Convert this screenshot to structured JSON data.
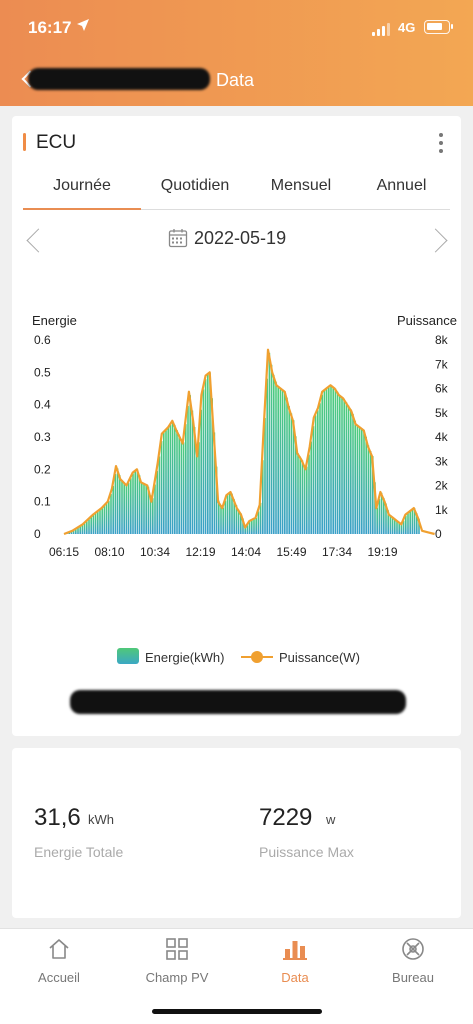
{
  "status_bar": {
    "time": "16:17",
    "network": "4G"
  },
  "nav": {
    "title": "Data"
  },
  "card": {
    "title": "ECU",
    "tabs": [
      "Journée",
      "Quotidien",
      "Mensuel",
      "Annuel"
    ],
    "active_tab": "Journée",
    "date": "2022-05-19"
  },
  "chart_data": {
    "type": "area",
    "x_labels": [
      "06:15",
      "08:10",
      "10:34",
      "12:19",
      "14:04",
      "15:49",
      "17:34",
      "19:19"
    ],
    "left_axis": {
      "label": "Energie",
      "ticks": [
        "0",
        "0.1",
        "0.2",
        "0.3",
        "0.4",
        "0.5",
        "0.6"
      ],
      "ylim": [
        0,
        0.6
      ]
    },
    "right_axis": {
      "label": "Puissance",
      "ticks": [
        "0",
        "1k",
        "2k",
        "3k",
        "4k",
        "5k",
        "6k",
        "7k",
        "8k"
      ],
      "ylim": [
        0,
        8000
      ]
    },
    "series": [
      {
        "name": "Energie(kWh)",
        "type": "bar"
      },
      {
        "name": "Puissance(W)",
        "type": "line"
      }
    ],
    "x_range": [
      "06:15",
      "20:30"
    ],
    "points": [
      [
        "06:15",
        0.0
      ],
      [
        "06:35",
        0.01
      ],
      [
        "07:00",
        0.03
      ],
      [
        "07:25",
        0.06
      ],
      [
        "07:45",
        0.08
      ],
      [
        "08:00",
        0.1
      ],
      [
        "08:10",
        0.14
      ],
      [
        "08:20",
        0.21
      ],
      [
        "08:30",
        0.17
      ],
      [
        "08:45",
        0.15
      ],
      [
        "09:00",
        0.19
      ],
      [
        "09:10",
        0.2
      ],
      [
        "09:20",
        0.16
      ],
      [
        "09:35",
        0.15
      ],
      [
        "09:45",
        0.1
      ],
      [
        "10:00",
        0.22
      ],
      [
        "10:10",
        0.31
      ],
      [
        "10:25",
        0.33
      ],
      [
        "10:35",
        0.35
      ],
      [
        "10:45",
        0.32
      ],
      [
        "11:00",
        0.28
      ],
      [
        "11:15",
        0.44
      ],
      [
        "11:25",
        0.35
      ],
      [
        "11:35",
        0.24
      ],
      [
        "11:45",
        0.43
      ],
      [
        "11:55",
        0.49
      ],
      [
        "12:05",
        0.5
      ],
      [
        "12:15",
        0.3
      ],
      [
        "12:25",
        0.1
      ],
      [
        "12:35",
        0.08
      ],
      [
        "12:45",
        0.12
      ],
      [
        "12:55",
        0.13
      ],
      [
        "13:10",
        0.08
      ],
      [
        "13:20",
        0.06
      ],
      [
        "13:30",
        0.02
      ],
      [
        "13:40",
        0.04
      ],
      [
        "13:55",
        0.05
      ],
      [
        "14:05",
        0.09
      ],
      [
        "14:15",
        0.34
      ],
      [
        "14:25",
        0.57
      ],
      [
        "14:35",
        0.5
      ],
      [
        "14:45",
        0.46
      ],
      [
        "14:55",
        0.45
      ],
      [
        "15:05",
        0.44
      ],
      [
        "15:15",
        0.39
      ],
      [
        "15:25",
        0.35
      ],
      [
        "15:35",
        0.25
      ],
      [
        "15:45",
        0.23
      ],
      [
        "15:55",
        0.2
      ],
      [
        "16:05",
        0.27
      ],
      [
        "16:15",
        0.36
      ],
      [
        "16:25",
        0.39
      ],
      [
        "16:35",
        0.44
      ],
      [
        "16:45",
        0.45
      ],
      [
        "16:55",
        0.46
      ],
      [
        "17:05",
        0.45
      ],
      [
        "17:15",
        0.43
      ],
      [
        "17:25",
        0.42
      ],
      [
        "17:35",
        0.4
      ],
      [
        "17:45",
        0.38
      ],
      [
        "17:55",
        0.34
      ],
      [
        "18:05",
        0.33
      ],
      [
        "18:15",
        0.32
      ],
      [
        "18:25",
        0.27
      ],
      [
        "18:35",
        0.24
      ],
      [
        "18:45",
        0.08
      ],
      [
        "18:55",
        0.13
      ],
      [
        "19:05",
        0.1
      ],
      [
        "19:15",
        0.06
      ],
      [
        "19:25",
        0.05
      ],
      [
        "19:35",
        0.04
      ],
      [
        "19:45",
        0.03
      ],
      [
        "19:55",
        0.06
      ],
      [
        "20:05",
        0.07
      ],
      [
        "20:15",
        0.08
      ],
      [
        "20:25",
        0.05
      ],
      [
        "20:35",
        0.01
      ],
      [
        "20:50",
        0.005
      ],
      [
        "21:05",
        0.0
      ]
    ]
  },
  "legend": {
    "energie": "Energie(kWh)",
    "puissance": "Puissance(W)"
  },
  "stats": {
    "energie_value": "31,6",
    "energie_unit": "kWh",
    "energie_label": "Energie Totale",
    "puissance_value": "7229",
    "puissance_unit": "w",
    "puissance_label": "Puissance Max"
  },
  "tabbar": {
    "items": [
      "Accueil",
      "Champ PV",
      "Data",
      "Bureau"
    ],
    "active": "Data"
  },
  "colors": {
    "accent": "#e98d52",
    "header_start": "#ec8c52",
    "header_end": "#f3a753",
    "line": "#f0a030"
  }
}
